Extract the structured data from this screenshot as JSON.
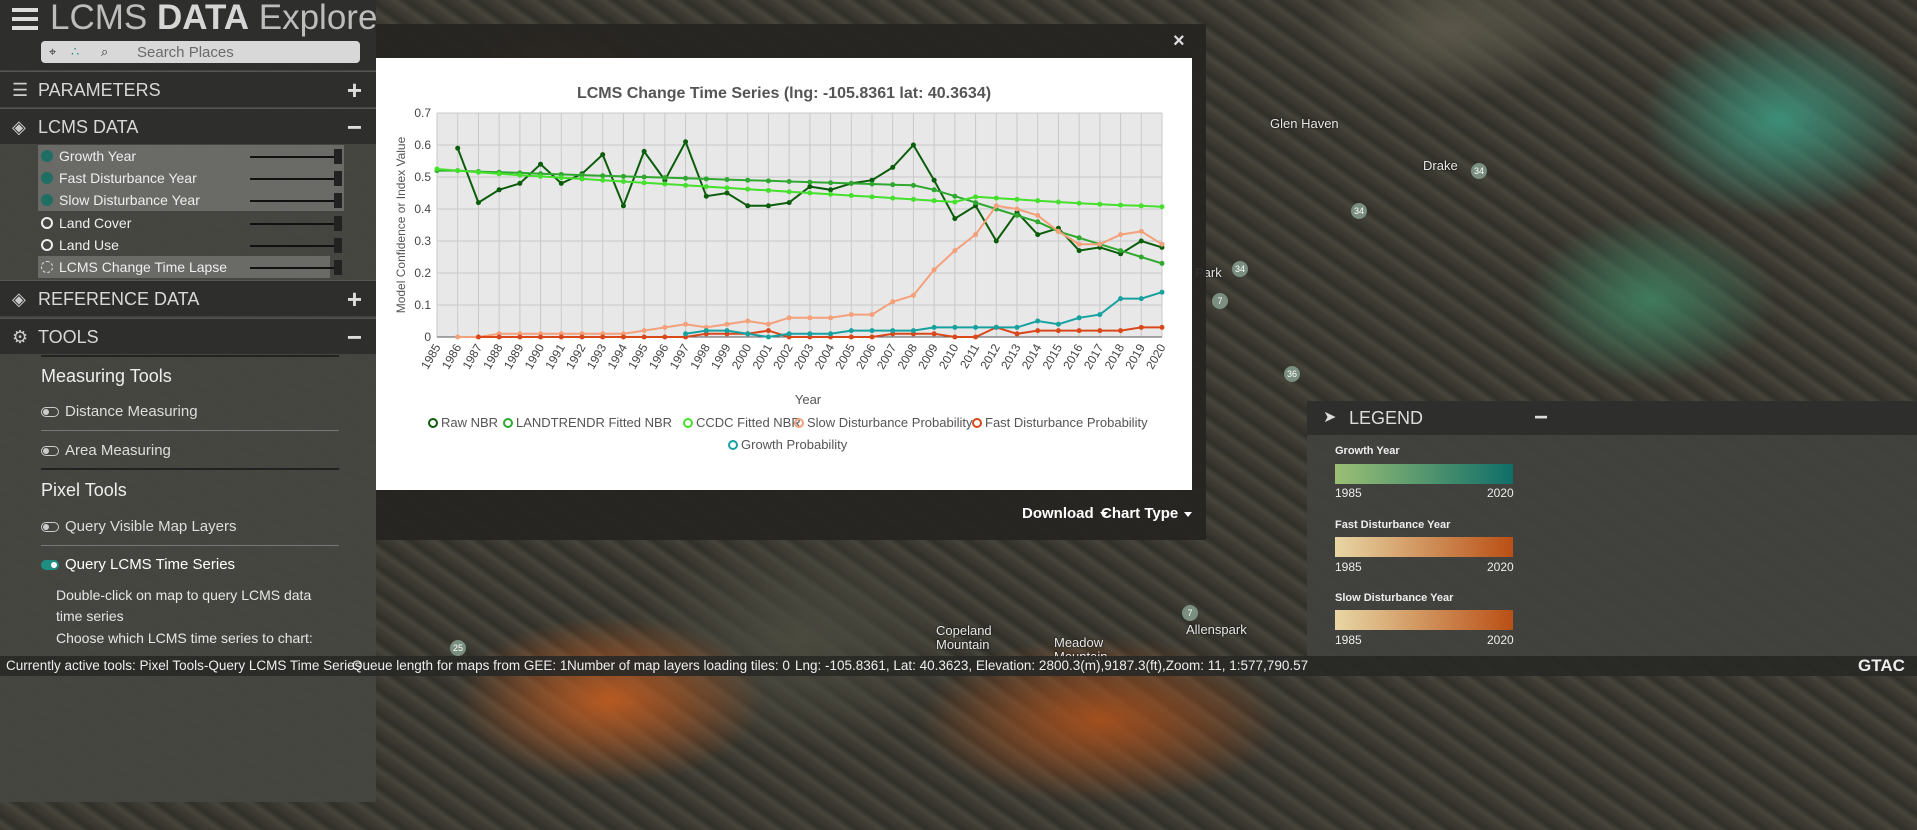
{
  "app": {
    "title_light": "LCMS",
    "title_bold": "DATA",
    "title_rest": "Explorer"
  },
  "search": {
    "placeholder": "Search Places"
  },
  "sections": {
    "parameters": "PARAMETERS",
    "lcms_data": "LCMS DATA",
    "reference_data": "REFERENCE DATA",
    "tools": "TOOLS"
  },
  "layers": [
    {
      "name": "Growth Year",
      "state": "on"
    },
    {
      "name": "Fast Disturbance Year",
      "state": "on"
    },
    {
      "name": "Slow Disturbance Year",
      "state": "on"
    },
    {
      "name": "Land Cover",
      "state": "off"
    },
    {
      "name": "Land Use",
      "state": "off"
    },
    {
      "name": "LCMS Change Time Lapse",
      "state": "loading"
    }
  ],
  "tools": {
    "measuring_heading": "Measuring Tools",
    "distance": "Distance Measuring",
    "area": "Area Measuring",
    "pixel_heading": "Pixel Tools",
    "query_visible": "Query Visible Map Layers",
    "query_lcms": "Query LCMS Time Series",
    "desc1": "Double-click on map to query LCMS data time series",
    "desc2": "Choose which LCMS time series to chart:"
  },
  "map_labels": [
    "Glen Haven",
    "Drake",
    "Park",
    "Copeland Mountain",
    "Meadow Mountain",
    "Allenspark",
    "34",
    "34",
    "34",
    "36",
    "7",
    "7",
    "25"
  ],
  "modal": {
    "close": "×",
    "download": "Download",
    "chart_type": "Chart Type"
  },
  "chart_data": {
    "type": "line",
    "title": "LCMS Change Time Series (lng: -105.8361 lat: 40.3634)",
    "xlabel": "Year",
    "ylabel": "Model Confidence or Index Value",
    "ylim": [
      0,
      0.7
    ],
    "yticks": [
      0,
      0.1,
      0.2,
      0.3,
      0.4,
      0.5,
      0.6,
      0.7
    ],
    "grid": true,
    "legend_position": "bottom",
    "x": [
      1985,
      1986,
      1987,
      1988,
      1989,
      1990,
      1991,
      1992,
      1993,
      1994,
      1995,
      1996,
      1997,
      1998,
      1999,
      2000,
      2001,
      2002,
      2003,
      2004,
      2005,
      2006,
      2007,
      2008,
      2009,
      2010,
      2011,
      2012,
      2013,
      2014,
      2015,
      2016,
      2017,
      2018,
      2019,
      2020
    ],
    "series": [
      {
        "name": "Raw NBR",
        "color": "#0b5d0b",
        "values": [
          null,
          0.59,
          0.42,
          0.46,
          0.48,
          0.54,
          0.48,
          0.51,
          0.57,
          0.41,
          0.58,
          0.49,
          0.61,
          0.44,
          0.45,
          0.41,
          0.41,
          0.42,
          0.47,
          0.46,
          0.48,
          0.49,
          0.53,
          0.6,
          0.49,
          0.37,
          0.41,
          0.3,
          0.39,
          0.32,
          0.34,
          0.27,
          0.28,
          0.26,
          0.3,
          0.28
        ]
      },
      {
        "name": "LANDTRENDR Fitted NBR",
        "color": "#2fa82f",
        "values": [
          0.52,
          0.52,
          0.517,
          0.515,
          0.513,
          0.51,
          0.508,
          0.506,
          0.504,
          0.502,
          0.5,
          0.498,
          0.496,
          0.494,
          0.492,
          0.49,
          0.488,
          0.486,
          0.484,
          0.482,
          0.48,
          0.478,
          0.476,
          0.474,
          0.46,
          0.44,
          0.42,
          0.4,
          0.38,
          0.36,
          0.33,
          0.31,
          0.29,
          0.27,
          0.25,
          0.23
        ]
      },
      {
        "name": "CCDC Fitted NBR",
        "color": "#44e02c",
        "values": [
          0.525,
          0.52,
          0.515,
          0.51,
          0.506,
          0.502,
          0.498,
          0.494,
          0.49,
          0.486,
          0.482,
          0.478,
          0.474,
          0.47,
          0.466,
          0.462,
          0.458,
          0.454,
          0.45,
          0.446,
          0.442,
          0.438,
          0.434,
          0.43,
          0.426,
          0.422,
          0.438,
          0.434,
          0.43,
          0.426,
          0.422,
          0.418,
          0.415,
          0.412,
          0.41,
          0.407
        ]
      },
      {
        "name": "Slow Disturbance Probability",
        "color": "#f4a07b",
        "values": [
          null,
          0,
          0,
          0.01,
          0.01,
          0.01,
          0.01,
          0.01,
          0.01,
          0.01,
          0.02,
          0.03,
          0.04,
          0.03,
          0.04,
          0.05,
          0.04,
          0.06,
          0.06,
          0.06,
          0.07,
          0.07,
          0.11,
          0.13,
          0.21,
          0.27,
          0.32,
          0.41,
          0.4,
          0.38,
          0.33,
          0.29,
          0.29,
          0.32,
          0.33,
          0.29
        ]
      },
      {
        "name": "Fast Disturbance Probability",
        "color": "#d9481b",
        "values": [
          null,
          null,
          0,
          0,
          0,
          0,
          0,
          0,
          0,
          0,
          0,
          0,
          0,
          0.01,
          0.01,
          0.01,
          0.02,
          0,
          0,
          0,
          0,
          0,
          0.01,
          0.01,
          0.01,
          0,
          0,
          0.03,
          0.01,
          0.02,
          0.02,
          0.02,
          0.02,
          0.02,
          0.03,
          0.03
        ]
      },
      {
        "name": "Growth Probability",
        "color": "#17a2a0",
        "values": [
          null,
          null,
          null,
          null,
          null,
          null,
          null,
          null,
          null,
          null,
          null,
          null,
          0.01,
          0.02,
          0.02,
          0.01,
          0,
          0.01,
          0.01,
          0.01,
          0.02,
          0.02,
          0.02,
          0.02,
          0.03,
          0.03,
          0.03,
          0.03,
          0.03,
          0.05,
          0.04,
          0.06,
          0.07,
          0.12,
          0.12,
          0.14
        ]
      }
    ]
  },
  "legend": {
    "title": "LEGEND",
    "items": [
      {
        "title": "Growth Year",
        "lo": "1985",
        "hi": "2020",
        "from": "#9bbf74",
        "to": "#0f6e68"
      },
      {
        "title": "Fast Disturbance Year",
        "lo": "1985",
        "hi": "2020",
        "from": "#e8d6a4",
        "to": "#b94f15"
      },
      {
        "title": "Slow Disturbance Year",
        "lo": "1985",
        "hi": "2020",
        "from": "#e8d6a4",
        "to": "#b94f15"
      }
    ]
  },
  "status": {
    "active_tools": "Currently active tools: Pixel Tools-Query LCMS Time Series",
    "queue": "Queue length for maps from GEE: 1",
    "loading": "Number of map layers loading tiles: 0",
    "coords": "Lng: -105.8361, Lat: 40.3623, Elevation: 2800.3(m),9187.3(ft),Zoom: 11, 1:577,790.57",
    "brand": "GTAC"
  }
}
